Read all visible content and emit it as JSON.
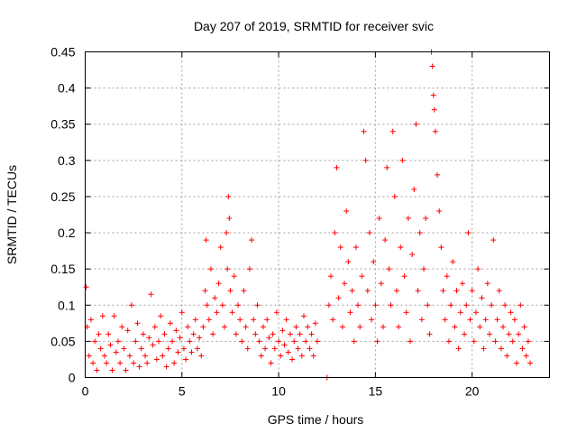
{
  "chart_data": {
    "type": "scatter",
    "title": "Day 207 of 2019, SRMTID for receiver svic",
    "xlabel": "GPS time / hours",
    "ylabel": "SRMTID / TECUs",
    "xlim": [
      0,
      24
    ],
    "ylim": [
      0,
      0.45
    ],
    "x_ticks": [
      0,
      5,
      10,
      15,
      20
    ],
    "y_ticks": [
      0,
      0.05,
      0.1,
      0.15,
      0.2,
      0.25,
      0.3,
      0.35,
      0.4,
      0.45
    ],
    "x_tick_labels": [
      "0",
      "5",
      "10",
      "15",
      "20"
    ],
    "y_tick_labels": [
      "0",
      "0.05",
      "0.1",
      "0.15",
      "0.2",
      "0.25",
      "0.3",
      "0.35",
      "0.4",
      "0.45"
    ],
    "grid": true,
    "marker": "+",
    "marker_color": "#ff0000",
    "series": [
      {
        "name": "SRMTID",
        "points": [
          [
            0.05,
            0.125
          ],
          [
            0.1,
            0.07
          ],
          [
            0.2,
            0.03
          ],
          [
            0.3,
            0.08
          ],
          [
            0.4,
            0.02
          ],
          [
            0.5,
            0.05
          ],
          [
            0.6,
            0.01
          ],
          [
            0.7,
            0.06
          ],
          [
            0.8,
            0.04
          ],
          [
            0.9,
            0.085
          ],
          [
            1.0,
            0.03
          ],
          [
            1.1,
            0.02
          ],
          [
            1.2,
            0.06
          ],
          [
            1.3,
            0.045
          ],
          [
            1.4,
            0.01
          ],
          [
            1.5,
            0.085
          ],
          [
            1.6,
            0.035
          ],
          [
            1.7,
            0.05
          ],
          [
            1.8,
            0.02
          ],
          [
            1.9,
            0.07
          ],
          [
            2.0,
            0.04
          ],
          [
            2.1,
            0.01
          ],
          [
            2.2,
            0.065
          ],
          [
            2.3,
            0.03
          ],
          [
            2.4,
            0.1
          ],
          [
            2.5,
            0.02
          ],
          [
            2.6,
            0.05
          ],
          [
            2.7,
            0.075
          ],
          [
            2.8,
            0.015
          ],
          [
            2.9,
            0.04
          ],
          [
            3.0,
            0.06
          ],
          [
            3.1,
            0.03
          ],
          [
            3.2,
            0.02
          ],
          [
            3.3,
            0.055
          ],
          [
            3.4,
            0.115
          ],
          [
            3.5,
            0.045
          ],
          [
            3.6,
            0.07
          ],
          [
            3.7,
            0.025
          ],
          [
            3.8,
            0.05
          ],
          [
            3.9,
            0.085
          ],
          [
            4.0,
            0.03
          ],
          [
            4.1,
            0.06
          ],
          [
            4.2,
            0.015
          ],
          [
            4.3,
            0.04
          ],
          [
            4.4,
            0.075
          ],
          [
            4.5,
            0.05
          ],
          [
            4.6,
            0.02
          ],
          [
            4.7,
            0.065
          ],
          [
            4.8,
            0.035
          ],
          [
            4.9,
            0.055
          ],
          [
            5.0,
            0.09
          ],
          [
            5.1,
            0.04
          ],
          [
            5.2,
            0.025
          ],
          [
            5.3,
            0.07
          ],
          [
            5.4,
            0.05
          ],
          [
            5.5,
            0.035
          ],
          [
            5.6,
            0.06
          ],
          [
            5.7,
            0.08
          ],
          [
            5.8,
            0.04
          ],
          [
            5.9,
            0.055
          ],
          [
            6.0,
            0.03
          ],
          [
            6.1,
            0.07
          ],
          [
            6.2,
            0.12
          ],
          [
            6.25,
            0.19
          ],
          [
            6.3,
            0.1
          ],
          [
            6.4,
            0.08
          ],
          [
            6.5,
            0.15
          ],
          [
            6.6,
            0.06
          ],
          [
            6.7,
            0.11
          ],
          [
            6.8,
            0.09
          ],
          [
            6.9,
            0.13
          ],
          [
            7.0,
            0.18
          ],
          [
            7.1,
            0.1
          ],
          [
            7.2,
            0.07
          ],
          [
            7.3,
            0.2
          ],
          [
            7.35,
            0.15
          ],
          [
            7.4,
            0.25
          ],
          [
            7.45,
            0.22
          ],
          [
            7.5,
            0.12
          ],
          [
            7.6,
            0.09
          ],
          [
            7.7,
            0.14
          ],
          [
            7.8,
            0.06
          ],
          [
            7.9,
            0.1
          ],
          [
            8.0,
            0.08
          ],
          [
            8.1,
            0.05
          ],
          [
            8.2,
            0.12
          ],
          [
            8.3,
            0.07
          ],
          [
            8.4,
            0.04
          ],
          [
            8.5,
            0.15
          ],
          [
            8.6,
            0.19
          ],
          [
            8.7,
            0.08
          ],
          [
            8.8,
            0.06
          ],
          [
            8.9,
            0.1
          ],
          [
            9.0,
            0.05
          ],
          [
            9.1,
            0.03
          ],
          [
            9.2,
            0.07
          ],
          [
            9.3,
            0.04
          ],
          [
            9.4,
            0.08
          ],
          [
            9.5,
            0.055
          ],
          [
            9.6,
            0.02
          ],
          [
            9.7,
            0.06
          ],
          [
            9.8,
            0.04
          ],
          [
            9.9,
            0.09
          ],
          [
            10.0,
            0.05
          ],
          [
            10.1,
            0.03
          ],
          [
            10.2,
            0.065
          ],
          [
            10.3,
            0.045
          ],
          [
            10.4,
            0.08
          ],
          [
            10.5,
            0.035
          ],
          [
            10.6,
            0.06
          ],
          [
            10.7,
            0.025
          ],
          [
            10.8,
            0.05
          ],
          [
            10.9,
            0.07
          ],
          [
            11.0,
            0.04
          ],
          [
            11.1,
            0.06
          ],
          [
            11.2,
            0.03
          ],
          [
            11.3,
            0.085
          ],
          [
            11.4,
            0.05
          ],
          [
            11.5,
            0.07
          ],
          [
            11.6,
            0.04
          ],
          [
            11.7,
            0.06
          ],
          [
            11.8,
            0.03
          ],
          [
            11.9,
            0.075
          ],
          [
            12.0,
            0.05
          ],
          [
            12.5,
            0.0
          ],
          [
            12.6,
            0.1
          ],
          [
            12.7,
            0.14
          ],
          [
            12.8,
            0.08
          ],
          [
            12.9,
            0.2
          ],
          [
            13.0,
            0.29
          ],
          [
            13.1,
            0.11
          ],
          [
            13.2,
            0.18
          ],
          [
            13.3,
            0.07
          ],
          [
            13.4,
            0.13
          ],
          [
            13.5,
            0.23
          ],
          [
            13.6,
            0.16
          ],
          [
            13.7,
            0.09
          ],
          [
            13.8,
            0.12
          ],
          [
            13.9,
            0.05
          ],
          [
            14.0,
            0.18
          ],
          [
            14.1,
            0.1
          ],
          [
            14.2,
            0.07
          ],
          [
            14.3,
            0.14
          ],
          [
            14.4,
            0.34
          ],
          [
            14.5,
            0.3
          ],
          [
            14.6,
            0.12
          ],
          [
            14.7,
            0.2
          ],
          [
            14.8,
            0.08
          ],
          [
            14.9,
            0.16
          ],
          [
            15.0,
            0.1
          ],
          [
            15.1,
            0.05
          ],
          [
            15.2,
            0.22
          ],
          [
            15.3,
            0.13
          ],
          [
            15.4,
            0.07
          ],
          [
            15.5,
            0.19
          ],
          [
            15.6,
            0.29
          ],
          [
            15.7,
            0.15
          ],
          [
            15.8,
            0.1
          ],
          [
            15.9,
            0.34
          ],
          [
            16.0,
            0.25
          ],
          [
            16.1,
            0.12
          ],
          [
            16.2,
            0.07
          ],
          [
            16.3,
            0.18
          ],
          [
            16.4,
            0.3
          ],
          [
            16.5,
            0.14
          ],
          [
            16.6,
            0.09
          ],
          [
            16.7,
            0.22
          ],
          [
            16.8,
            0.05
          ],
          [
            16.9,
            0.17
          ],
          [
            17.0,
            0.26
          ],
          [
            17.1,
            0.35
          ],
          [
            17.2,
            0.12
          ],
          [
            17.3,
            0.2
          ],
          [
            17.4,
            0.08
          ],
          [
            17.5,
            0.15
          ],
          [
            17.6,
            0.22
          ],
          [
            17.7,
            0.1
          ],
          [
            17.8,
            0.06
          ],
          [
            17.9,
            0.45
          ],
          [
            17.95,
            0.43
          ],
          [
            18.0,
            0.39
          ],
          [
            18.05,
            0.37
          ],
          [
            18.1,
            0.34
          ],
          [
            18.2,
            0.28
          ],
          [
            18.3,
            0.23
          ],
          [
            18.4,
            0.18
          ],
          [
            18.5,
            0.12
          ],
          [
            18.6,
            0.08
          ],
          [
            18.7,
            0.14
          ],
          [
            18.8,
            0.05
          ],
          [
            18.9,
            0.1
          ],
          [
            19.0,
            0.16
          ],
          [
            19.1,
            0.07
          ],
          [
            19.2,
            0.12
          ],
          [
            19.3,
            0.04
          ],
          [
            19.4,
            0.09
          ],
          [
            19.5,
            0.13
          ],
          [
            19.6,
            0.06
          ],
          [
            19.7,
            0.1
          ],
          [
            19.8,
            0.2
          ],
          [
            19.9,
            0.08
          ],
          [
            20.0,
            0.12
          ],
          [
            20.1,
            0.05
          ],
          [
            20.2,
            0.09
          ],
          [
            20.3,
            0.15
          ],
          [
            20.4,
            0.07
          ],
          [
            20.5,
            0.11
          ],
          [
            20.6,
            0.04
          ],
          [
            20.7,
            0.08
          ],
          [
            20.8,
            0.13
          ],
          [
            20.9,
            0.06
          ],
          [
            21.0,
            0.1
          ],
          [
            21.1,
            0.19
          ],
          [
            21.2,
            0.05
          ],
          [
            21.3,
            0.08
          ],
          [
            21.4,
            0.12
          ],
          [
            21.5,
            0.04
          ],
          [
            21.6,
            0.07
          ],
          [
            21.7,
            0.1
          ],
          [
            21.8,
            0.03
          ],
          [
            21.9,
            0.06
          ],
          [
            22.0,
            0.09
          ],
          [
            22.1,
            0.05
          ],
          [
            22.2,
            0.08
          ],
          [
            22.3,
            0.02
          ],
          [
            22.4,
            0.06
          ],
          [
            22.5,
            0.1
          ],
          [
            22.6,
            0.04
          ],
          [
            22.7,
            0.07
          ],
          [
            22.8,
            0.03
          ],
          [
            22.9,
            0.05
          ],
          [
            23.0,
            0.02
          ]
        ]
      }
    ]
  }
}
